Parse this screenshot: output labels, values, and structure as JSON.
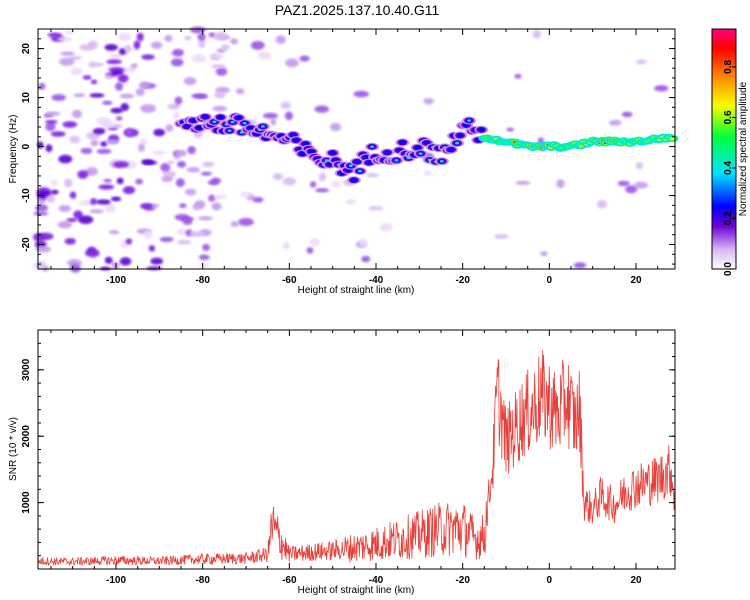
{
  "title": "PAZ1.2025.137.10.40.G11",
  "chart_data": [
    {
      "type": "heatmap",
      "xlabel": "Height of straight line (km)",
      "ylabel": "Frequency (Hz)",
      "xlim": [
        -118,
        29
      ],
      "ylim": [
        -25,
        24
      ],
      "xticks": [
        -100,
        -80,
        -60,
        -40,
        -20,
        0,
        20
      ],
      "yticks": [
        -20,
        -10,
        0,
        10,
        20
      ],
      "description_trace": {
        "x": [
          -118,
          -100,
          -90,
          -80,
          -70,
          -60,
          -55,
          -50,
          -45,
          -40,
          -35,
          -30,
          -25,
          -22,
          -20,
          -15,
          -10,
          -5,
          0,
          5,
          10,
          15,
          20,
          29
        ],
        "freq": [
          -2,
          5,
          6,
          5,
          4,
          1,
          -2,
          -3,
          -5,
          -1,
          -1,
          0,
          -2,
          1,
          4,
          2,
          1,
          0,
          0,
          0,
          1,
          1,
          1,
          2
        ]
      },
      "colorbar": {
        "label": "Normalized spectral amplitude",
        "range": [
          0,
          0.95
        ],
        "ticks": [
          "0.0",
          "0.2",
          "0.4",
          "0.6",
          "0.8"
        ],
        "tick_values": [
          0.0,
          0.2,
          0.4,
          0.6,
          0.8
        ]
      }
    },
    {
      "type": "line",
      "xlabel": "Height of straight line (km)",
      "ylabel": "SNR (10 * v/v)",
      "xlim": [
        -118,
        29
      ],
      "ylim": [
        0,
        3600
      ],
      "xticks": [
        -100,
        -80,
        -60,
        -40,
        -20,
        0,
        20
      ],
      "yticks": [
        1000,
        2000,
        3000
      ],
      "color": "#e8403a",
      "series": [
        {
          "x": [
            -118,
            -110,
            -100,
            -90,
            -80,
            -70,
            -65,
            -64,
            -60,
            -50,
            -45,
            -40,
            -35,
            -30,
            -25,
            -20,
            -17,
            -15,
            -13,
            -12,
            -11,
            -10,
            -8,
            -6,
            -4,
            -2,
            0,
            2,
            4,
            6,
            7,
            8,
            10,
            12,
            15,
            18,
            20,
            25,
            28,
            29
          ],
          "y": [
            120,
            110,
            130,
            120,
            150,
            160,
            220,
            650,
            220,
            280,
            320,
            380,
            450,
            520,
            600,
            620,
            450,
            500,
            1600,
            2700,
            2300,
            1900,
            2100,
            2300,
            2400,
            2600,
            2500,
            2300,
            2600,
            2200,
            2400,
            1000,
            900,
            1100,
            950,
            1200,
            1250,
            1350,
            1500,
            1050
          ]
        }
      ]
    }
  ]
}
